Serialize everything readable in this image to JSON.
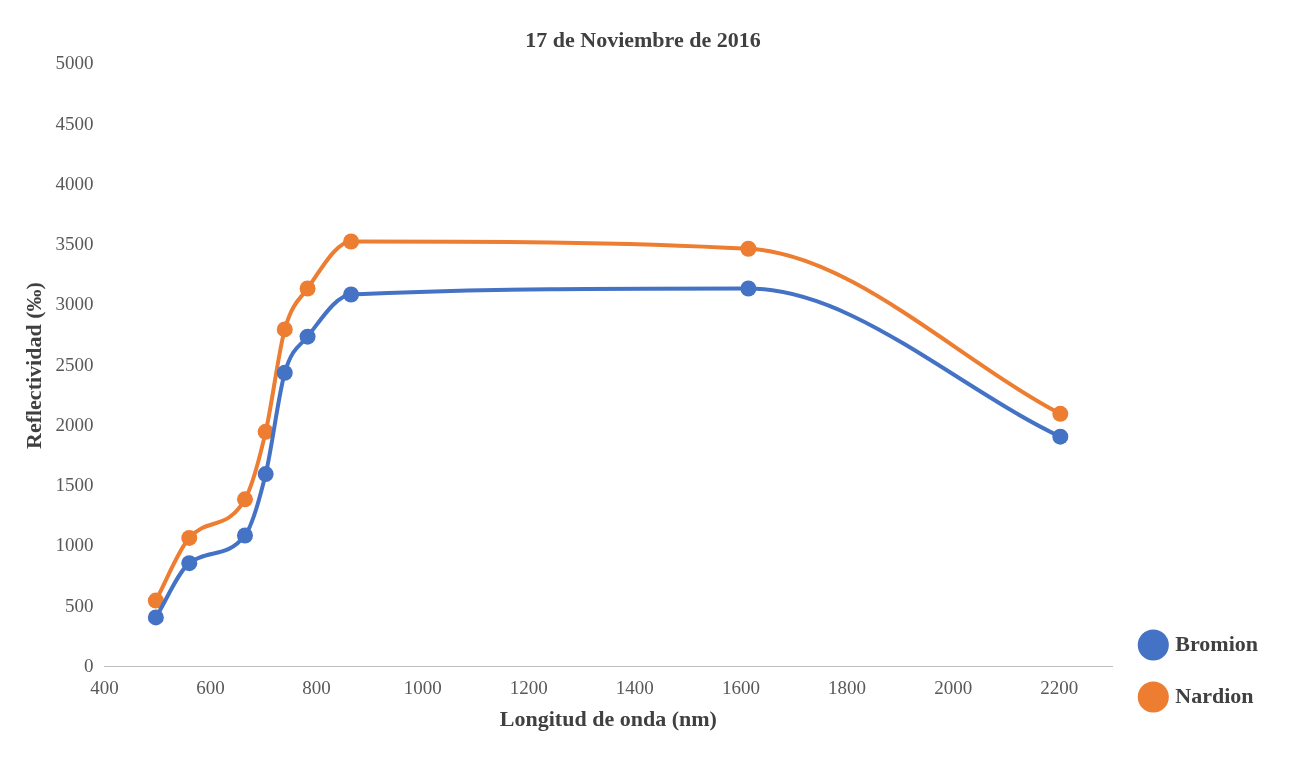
{
  "chart_data": {
    "type": "line",
    "title": "17 de Noviembre de 2016",
    "xlabel": "Longitud de onda (nm)",
    "ylabel": "Reflectividad (‰)",
    "x": [
      497,
      560,
      665,
      704,
      740,
      783,
      865,
      1614,
      2202
    ],
    "series": [
      {
        "name": "Bromion",
        "color": "#4472c4",
        "values": [
          410,
          860,
          1090,
          1600,
          2440,
          2740,
          3090,
          3140,
          1910
        ]
      },
      {
        "name": "Nardion",
        "color": "#ed7d31",
        "values": [
          550,
          1070,
          1390,
          1950,
          2800,
          3140,
          3530,
          3470,
          2100
        ]
      }
    ],
    "xlim": [
      400,
      2300
    ],
    "xticks": [
      400,
      600,
      800,
      1000,
      1200,
      1400,
      1600,
      1800,
      2000,
      2200
    ],
    "ylim": [
      0,
      5000
    ],
    "yticks": [
      0,
      500,
      1000,
      1500,
      2000,
      2500,
      3000,
      3500,
      4000,
      4500,
      5000
    ],
    "grid": false,
    "legend": "right",
    "marker": "circle",
    "line_style": "solid"
  }
}
